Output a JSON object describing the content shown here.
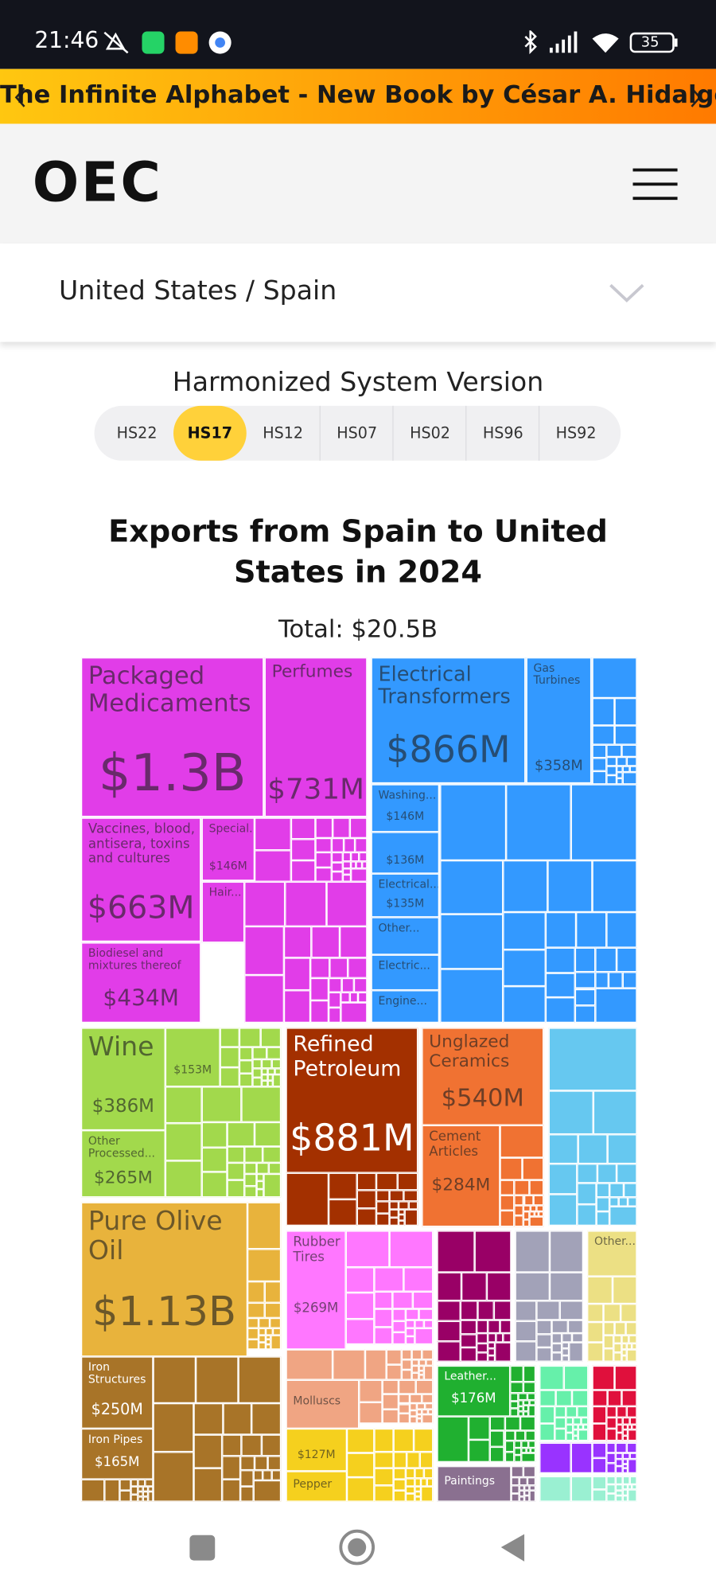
{
  "status_bar": {
    "time": "21:46",
    "battery": "35"
  },
  "banner": {
    "text": "The Infinite Alphabet - New Book by César A. Hidalgo"
  },
  "header": {
    "logo": "OEC"
  },
  "selector": {
    "label": "United States / Spain"
  },
  "hs_version": {
    "title": "Harmonized System Version",
    "options": [
      "HS22",
      "HS17",
      "HS12",
      "HS07",
      "HS02",
      "HS96",
      "HS92"
    ],
    "selected": 1
  },
  "chart": {
    "title": "Exports from Spain to United States in 2024",
    "total": "Total: $20.5B",
    "tiles": [
      {
        "name": "Packaged Medicaments",
        "value": "$1.3B"
      },
      {
        "name": "Perfumes",
        "value": "$731M"
      },
      {
        "name": "Vaccines, blood, antisera, toxins and cultures",
        "value": "$663M"
      },
      {
        "name": "Special...",
        "value": "$146M"
      },
      {
        "name": "Hair..."
      },
      {
        "name": "Biodiesel and mixtures thereof",
        "value": "$434M"
      },
      {
        "name": "Electrical Transformers",
        "value": "$866M"
      },
      {
        "name": "Gas Turbines",
        "value": "$358M"
      },
      {
        "name": "Washing...",
        "value": "$146M"
      },
      {
        "value": "$136M"
      },
      {
        "name": "Electrical...",
        "value": "$135M"
      },
      {
        "name": "Other..."
      },
      {
        "name": "Electric..."
      },
      {
        "name": "Engine..."
      },
      {
        "name": "Wine",
        "value": "$386M"
      },
      {
        "value": "$153M"
      },
      {
        "name": "Other Processed...",
        "value": "$265M"
      },
      {
        "name": "Refined Petroleum",
        "value": "$881M"
      },
      {
        "name": "Unglazed Ceramics",
        "value": "$540M"
      },
      {
        "name": "Cement Articles",
        "value": "$284M"
      },
      {
        "name": "Pure Olive Oil",
        "value": "$1.13B"
      },
      {
        "name": "Iron Structures",
        "value": "$250M"
      },
      {
        "name": "Iron Pipes",
        "value": "$165M"
      },
      {
        "name": "Rubber Tires",
        "value": "$269M"
      },
      {
        "name": "Molluscs"
      },
      {
        "value": "$127M"
      },
      {
        "name": "Pepper"
      },
      {
        "name": "Other..."
      },
      {
        "name": "Leather...",
        "value": "$176M"
      },
      {
        "name": "Paintings"
      }
    ]
  }
}
